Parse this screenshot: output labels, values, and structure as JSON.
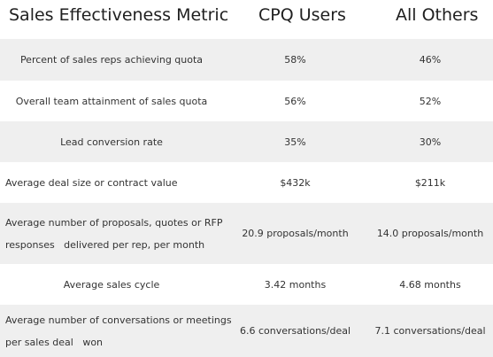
{
  "header": {
    "metric": "Sales Effectiveness Metric",
    "cpq": "CPQ Users",
    "others": "All Others"
  },
  "rows": [
    {
      "metric": "Percent of sales reps achieving quota",
      "cpq": "58%",
      "others": "46%"
    },
    {
      "metric": "Overall team attainment of sales quota",
      "cpq": "56%",
      "others": "52%"
    },
    {
      "metric": "Lead conversion rate",
      "cpq": "35%",
      "others": "30%"
    },
    {
      "metric": "Average deal size or contract value",
      "cpq": "$432k",
      "others": "$211k"
    },
    {
      "metric_line1": "Average number of proposals, quotes or RFP",
      "metric_line2": "responses   delivered per rep, per month",
      "cpq": "20.9 proposals/month",
      "others": "14.0 proposals/month"
    },
    {
      "metric": "Average sales cycle",
      "cpq": "3.42 months",
      "others": "4.68 months"
    },
    {
      "metric_line1": "Average number of conversations or meetings",
      "metric_line2": "per sales deal   won",
      "cpq": "6.6 conversations/deal",
      "others": "7.1 conversations/deal"
    }
  ],
  "colors": {
    "shaded_row": "#efefef",
    "text": "#333333",
    "header_text": "#1f1f1f"
  }
}
